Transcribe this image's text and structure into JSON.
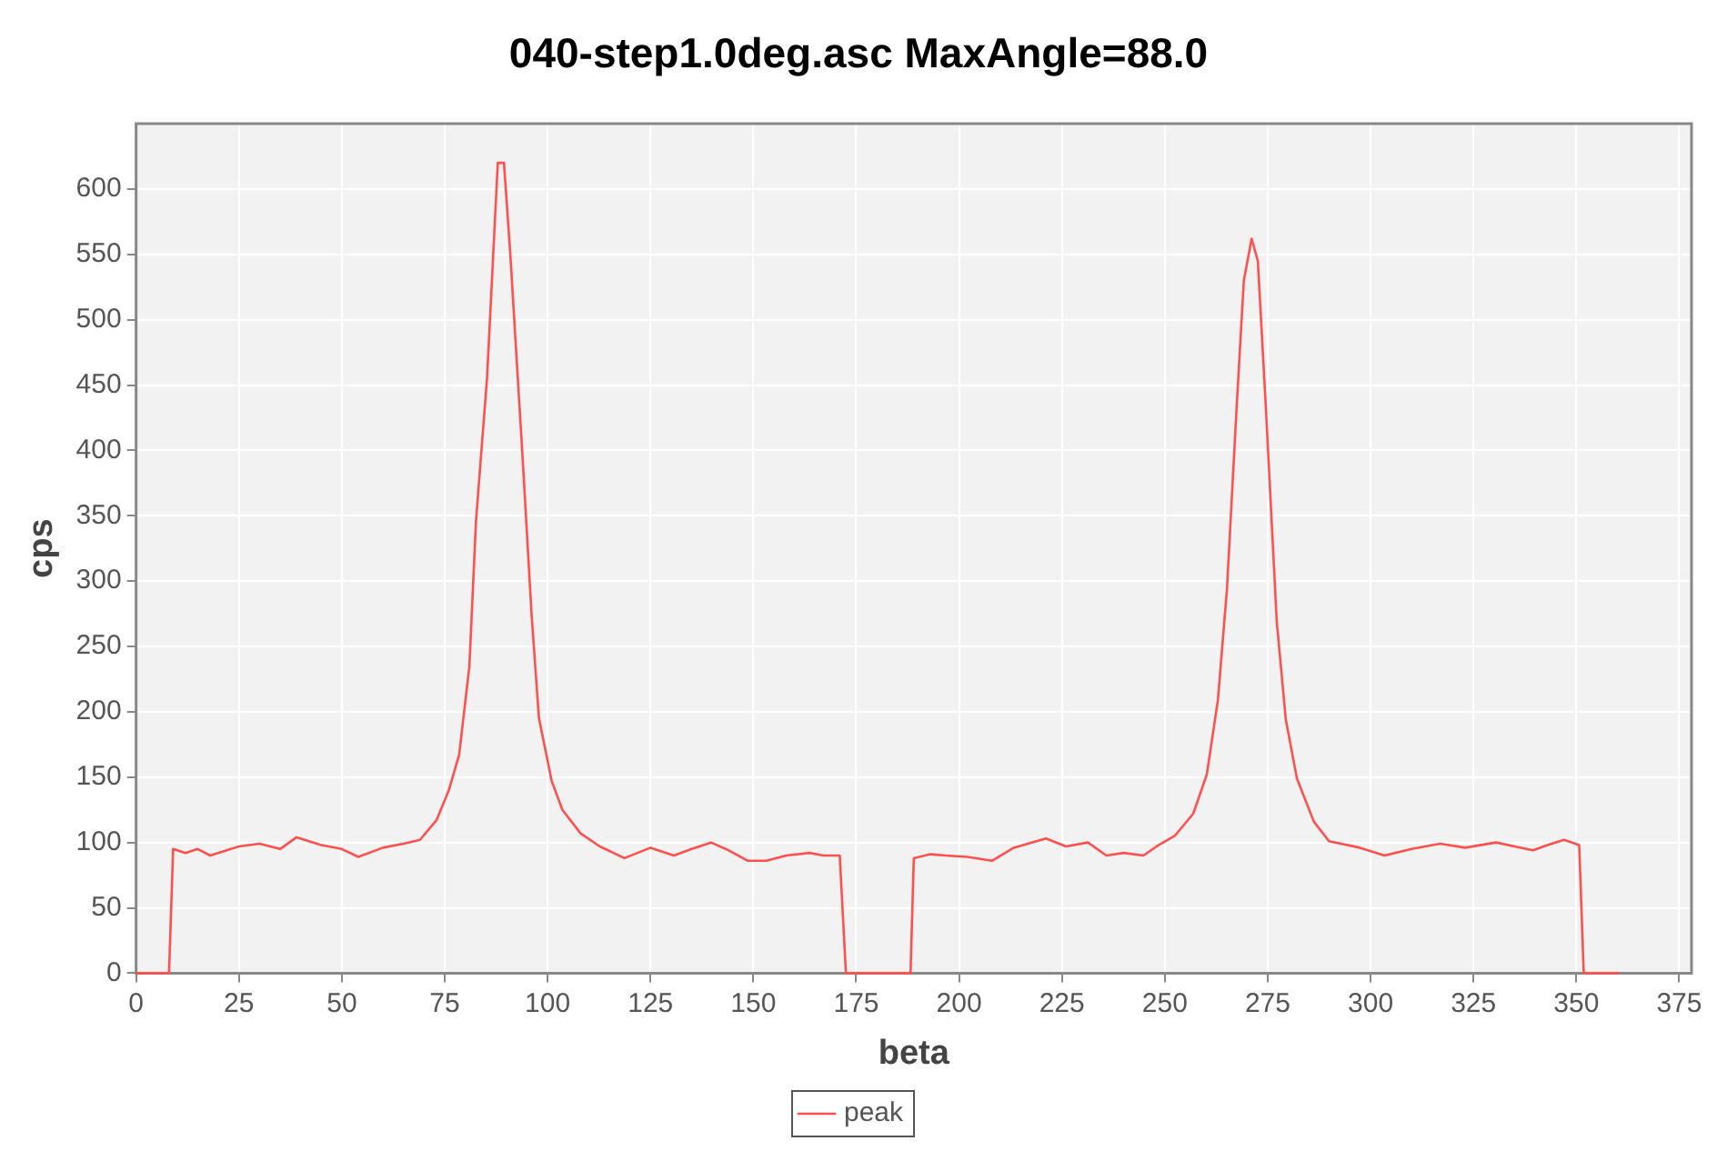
{
  "chart_data": {
    "type": "line",
    "title": "040-step1.0deg.asc MaxAngle=88.0",
    "xlabel": "beta",
    "ylabel": "cps",
    "xlim": [
      0,
      378
    ],
    "xticks": [
      0,
      25,
      50,
      75,
      100,
      125,
      150,
      175,
      200,
      225,
      250,
      275,
      300,
      325,
      350,
      375
    ],
    "ylim": [
      0,
      650
    ],
    "yticks": [
      0,
      50,
      100,
      150,
      200,
      250,
      300,
      350,
      400,
      450,
      500,
      550,
      600
    ],
    "grid": true,
    "legend": "bottom",
    "marker": "none",
    "line_style": "solid",
    "series": [
      {
        "name": "peak",
        "color": "#ff5050",
        "x": [
          0,
          8,
          9,
          12,
          15,
          18,
          21,
          25,
          30,
          35,
          39,
          45,
          50,
          54,
          60,
          65,
          69,
          73,
          76,
          78.5,
          81,
          82.6,
          85.3,
          87.9,
          89.4,
          90.9,
          93.9,
          96.1,
          97.9,
          101,
          103.6,
          108,
          112.7,
          118.7,
          125,
          130.7,
          135,
          139.7,
          144,
          148.7,
          153.2,
          158,
          163.7,
          167,
          171,
          172.5,
          188.2,
          189,
          193,
          196.8,
          202,
          208,
          213.3,
          221.1,
          226,
          231.3,
          235.8,
          240,
          244.8,
          248,
          252.4,
          256.9,
          260.2,
          262.9,
          265.1,
          267.4,
          269.2,
          271.1,
          272.6,
          274.6,
          277.2,
          279.4,
          282.1,
          286.2,
          289.9,
          297.4,
          303.4,
          310,
          316.9,
          323,
          330.5,
          335,
          339.5,
          343,
          347,
          350.7,
          351.8,
          360.5
        ],
        "values": [
          0,
          0,
          95,
          92,
          95,
          90,
          93,
          97,
          99,
          95,
          104,
          98,
          95,
          89,
          96,
          99,
          102,
          117,
          140,
          167,
          235,
          346,
          456,
          620,
          620,
          552,
          396,
          275,
          195,
          147,
          125,
          107,
          97,
          88,
          96,
          90,
          95,
          100,
          94,
          86,
          86,
          90,
          92,
          90,
          90,
          0,
          0,
          88,
          91,
          90,
          89,
          86,
          96,
          103,
          97,
          100,
          90,
          92,
          90,
          97,
          105,
          122,
          152,
          209,
          294,
          430,
          530,
          562,
          545,
          430,
          269,
          194,
          149,
          116,
          101,
          96,
          90,
          95,
          99,
          96,
          100,
          97,
          94,
          98,
          102,
          98,
          0,
          0
        ]
      }
    ]
  }
}
